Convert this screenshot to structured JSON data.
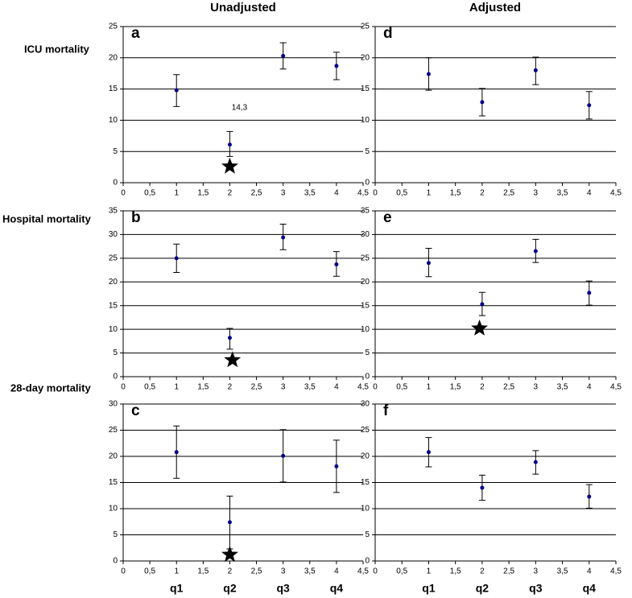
{
  "column_titles": [
    "Unadjusted",
    "Adjusted"
  ],
  "row_titles": [
    "ICU mortality",
    "Hospital mortality",
    "28-day mortality"
  ],
  "quartile_labels": [
    "q1",
    "q2",
    "q3",
    "q4"
  ],
  "chart_data": [
    {
      "type": "scatter",
      "panel": "a",
      "color": "#00008b",
      "grid": true,
      "x": [
        1,
        2,
        3,
        4
      ],
      "values": [
        14.8,
        6.1,
        20.3,
        18.7
      ],
      "lows": [
        12.2,
        4.2,
        18.2,
        16.5
      ],
      "highs": [
        17.3,
        8.2,
        22.4,
        20.9
      ],
      "annotations": [
        {
          "text": "14,3"
        }
      ],
      "markers": [
        {
          "x": 2,
          "y": 2.6
        }
      ],
      "xlim": [
        0,
        4.5
      ],
      "xticks": [
        0,
        {
          "value": 0.5,
          "label": "0,5"
        },
        1,
        {
          "value": 1.5,
          "label": "1,5"
        },
        2,
        {
          "value": 2.5,
          "label": "2,5"
        },
        3,
        {
          "value": 3.5,
          "label": "3,5"
        },
        4,
        {
          "value": 4.5,
          "label": "4,5"
        }
      ],
      "ylim": [
        0,
        25
      ],
      "yticks": [
        0,
        5,
        10,
        15,
        20,
        25
      ]
    },
    {
      "type": "scatter",
      "panel": "b",
      "color": "#00008b",
      "grid": true,
      "x": [
        1,
        2,
        3,
        4
      ],
      "values": [
        25.0,
        8.2,
        29.4,
        23.7
      ],
      "lows": [
        22.0,
        5.8,
        26.8,
        21.2
      ],
      "highs": [
        28.0,
        10.2,
        32.2,
        26.4
      ],
      "markers": [
        {
          "x": 2.05,
          "y": 3.5
        }
      ],
      "xlim": [
        0,
        4.5
      ],
      "xticks": [
        0,
        {
          "value": 0.5,
          "label": "0,5"
        },
        1,
        {
          "value": 1.5,
          "label": "1,5"
        },
        2,
        {
          "value": 2.5,
          "label": "2,5"
        },
        3,
        {
          "value": 3.5,
          "label": "3,5"
        },
        4,
        {
          "value": 4.5,
          "label": "4,5"
        }
      ],
      "ylim": [
        0,
        35
      ],
      "yticks": [
        0,
        5,
        10,
        15,
        20,
        25,
        30,
        35
      ]
    },
    {
      "type": "scatter",
      "panel": "c",
      "color": "#00008b",
      "grid": true,
      "x": [
        1,
        2,
        3,
        4
      ],
      "values": [
        20.8,
        7.4,
        20.1,
        18.1
      ],
      "lows": [
        15.8,
        2.3,
        15.1,
        13.1
      ],
      "highs": [
        25.8,
        12.4,
        25.1,
        23.1
      ],
      "markers": [
        {
          "x": 2.0,
          "y": 1.2
        }
      ],
      "xlim": [
        0,
        4.5
      ],
      "xticks": [
        0,
        {
          "value": 0.5,
          "label": "0,5"
        },
        1,
        {
          "value": 1.5,
          "label": "1,5"
        },
        2,
        {
          "value": 2.5,
          "label": "2,5"
        },
        3,
        {
          "value": 3.5,
          "label": "3,5"
        },
        4,
        {
          "value": 4.5,
          "label": "4,5"
        }
      ],
      "ylim": [
        0,
        30
      ],
      "yticks": [
        0,
        5,
        10,
        15,
        20,
        25,
        30
      ]
    },
    {
      "type": "scatter",
      "panel": "d",
      "color": "#00008b",
      "grid": true,
      "x": [
        1,
        2,
        3,
        4
      ],
      "values": [
        17.4,
        12.9,
        18.0,
        12.4
      ],
      "lows": [
        14.8,
        10.7,
        15.7,
        10.2
      ],
      "highs": [
        20.0,
        15.1,
        20.1,
        14.6
      ],
      "xlim": [
        0,
        4.5
      ],
      "xticks": [
        0,
        {
          "value": 0.5,
          "label": "0,5"
        },
        1,
        {
          "value": 1.5,
          "label": "1,5"
        },
        2,
        {
          "value": 2.5,
          "label": "2,5"
        },
        3,
        {
          "value": 3.5,
          "label": "3,5"
        },
        4,
        {
          "value": 4.5,
          "label": "4,5"
        }
      ],
      "ylim": [
        0,
        25
      ],
      "yticks": [
        0,
        5,
        10,
        15,
        20,
        25
      ]
    },
    {
      "type": "scatter",
      "panel": "e",
      "color": "#00008b",
      "grid": true,
      "x": [
        1,
        2,
        3,
        4
      ],
      "values": [
        24.0,
        15.3,
        26.5,
        17.7
      ],
      "lows": [
        21.1,
        12.9,
        24.1,
        15.1
      ],
      "highs": [
        27.1,
        17.8,
        29.0,
        20.2
      ],
      "markers": [
        {
          "x": 1.95,
          "y": 10.2
        }
      ],
      "xlim": [
        0,
        4.5
      ],
      "xticks": [
        0,
        {
          "value": 0.5,
          "label": "0,5"
        },
        1,
        {
          "value": 1.5,
          "label": "1,5"
        },
        2,
        {
          "value": 2.5,
          "label": "2,5"
        },
        3,
        {
          "value": 3.5,
          "label": "3,5"
        },
        4,
        {
          "value": 4.5,
          "label": "4,5"
        }
      ],
      "ylim": [
        0,
        35
      ],
      "yticks": [
        0,
        5,
        10,
        15,
        20,
        25,
        30,
        35
      ]
    },
    {
      "type": "scatter",
      "panel": "f",
      "color": "#00008b",
      "grid": true,
      "x": [
        1,
        2,
        3,
        4
      ],
      "values": [
        20.8,
        14.0,
        18.9,
        12.3
      ],
      "lows": [
        18.0,
        11.6,
        16.6,
        10.1
      ],
      "highs": [
        23.6,
        16.4,
        21.1,
        14.6
      ],
      "xlim": [
        0,
        4.5
      ],
      "xticks": [
        0,
        {
          "value": 0.5,
          "label": "0,5"
        },
        1,
        {
          "value": 1.5,
          "label": "1,5"
        },
        2,
        {
          "value": 2.5,
          "label": "2,5"
        },
        3,
        {
          "value": 3.5,
          "label": "3,5"
        },
        4,
        {
          "value": 4.5,
          "label": "4,5"
        }
      ],
      "ylim": [
        0,
        30
      ],
      "yticks": [
        0,
        5,
        10,
        15,
        20,
        25,
        30
      ]
    }
  ]
}
